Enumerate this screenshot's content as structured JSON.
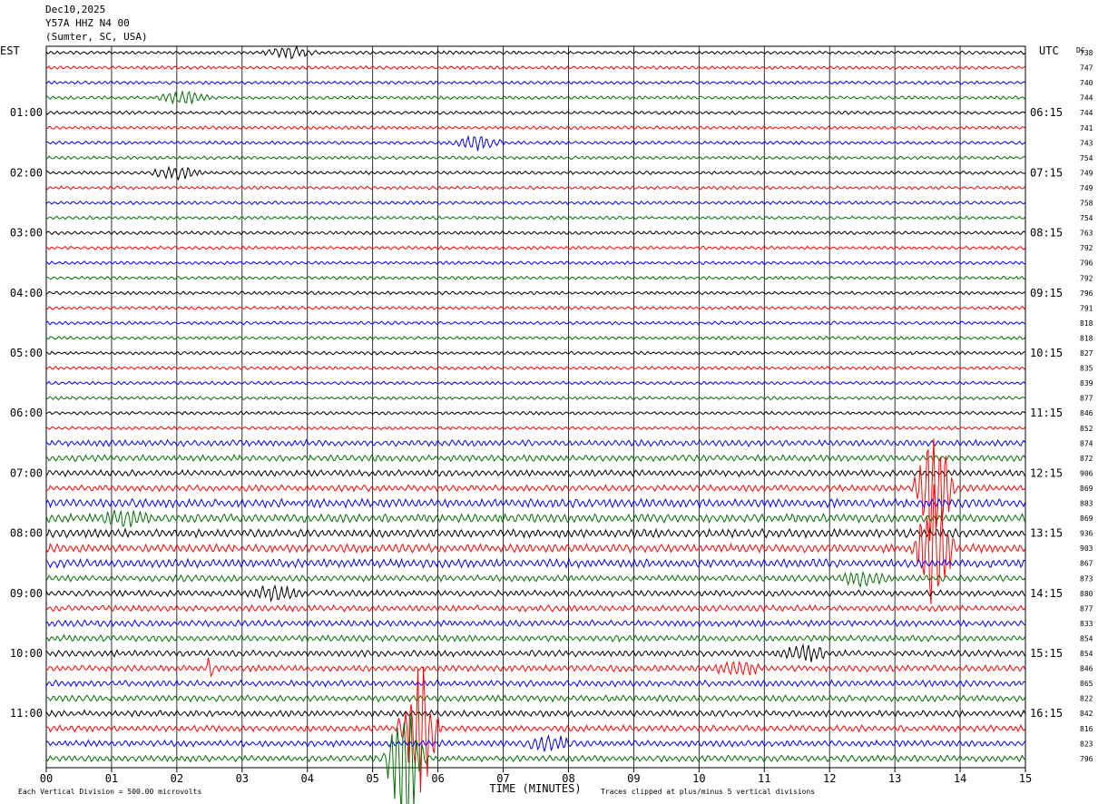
{
  "header": {
    "date": "Dec10,2025",
    "station": "Y57A HHZ N4 00",
    "location": "(Sumter, SC, USA)"
  },
  "labels": {
    "left_zone": "EST",
    "right_zone": "UTC",
    "dc_header": "DC",
    "x_axis_title": "TIME (MINUTES)",
    "scale_note": "Each Vertical Division =  500.00 microvolts",
    "clip_note": "Traces clipped at plus/minus 5 vertical divisions"
  },
  "colors": {
    "trace_cycle": [
      "#000000",
      "#ff0000",
      "#0000ff",
      "#007000"
    ],
    "grid": "#000000",
    "background": "#ffffff"
  },
  "chart_data": {
    "type": "line",
    "title": "",
    "xlabel": "TIME (MINUTES)",
    "xlim": [
      0,
      15
    ],
    "x_ticks": [
      "00",
      "01",
      "02",
      "03",
      "04",
      "05",
      "06",
      "07",
      "08",
      "09",
      "10",
      "11",
      "12",
      "13",
      "14",
      "15"
    ],
    "trace_minutes": 15,
    "trace_count": 48,
    "hour_labels_left": [
      "01:00",
      "02:00",
      "03:00",
      "04:00",
      "05:00",
      "06:00",
      "07:00",
      "08:00",
      "09:00",
      "10:00",
      "11:00"
    ],
    "hour_labels_right": [
      "06:15",
      "07:15",
      "08:15",
      "09:15",
      "10:15",
      "11:15",
      "12:15",
      "13:15",
      "14:15",
      "15:15",
      "16:15"
    ],
    "hour_label_trace_index": [
      4,
      8,
      12,
      16,
      20,
      24,
      28,
      32,
      36,
      40,
      44
    ],
    "dc_offsets": [
      738,
      747,
      740,
      744,
      744,
      741,
      743,
      754,
      749,
      749,
      758,
      754,
      763,
      792,
      796,
      792,
      796,
      791,
      818,
      818,
      827,
      835,
      839,
      877,
      846,
      852,
      874,
      872,
      906,
      869,
      883,
      869,
      936,
      903,
      867,
      873,
      880,
      877,
      833,
      854,
      854,
      846,
      865,
      822,
      842,
      816,
      823,
      796
    ],
    "events": [
      {
        "trace": 0,
        "minute": 3.75,
        "label": "burst"
      },
      {
        "trace": 3,
        "minute": 2.1,
        "label": "burst"
      },
      {
        "trace": 6,
        "minute": 6.6,
        "label": "burst"
      },
      {
        "trace": 8,
        "minute": 2.0,
        "label": "burst"
      },
      {
        "trace": 29,
        "minute": 13.6,
        "label": "clipped signal"
      },
      {
        "trace": 31,
        "minute": 1.2,
        "label": "burst"
      },
      {
        "trace": 33,
        "minute": 13.6,
        "label": "clipped signal"
      },
      {
        "trace": 35,
        "minute": 12.5,
        "label": "burst"
      },
      {
        "trace": 36,
        "minute": 3.5,
        "label": "burst"
      },
      {
        "trace": 40,
        "minute": 11.6,
        "label": "burst"
      },
      {
        "trace": 41,
        "minute": 2.5,
        "label": "spike"
      },
      {
        "trace": 41,
        "minute": 10.6,
        "label": "burst"
      },
      {
        "trace": 45,
        "minute": 5.7,
        "label": "clipped signal"
      },
      {
        "trace": 46,
        "minute": 7.7,
        "label": "burst"
      },
      {
        "trace": 47,
        "minute": 5.5,
        "label": "clipped signal"
      }
    ]
  }
}
